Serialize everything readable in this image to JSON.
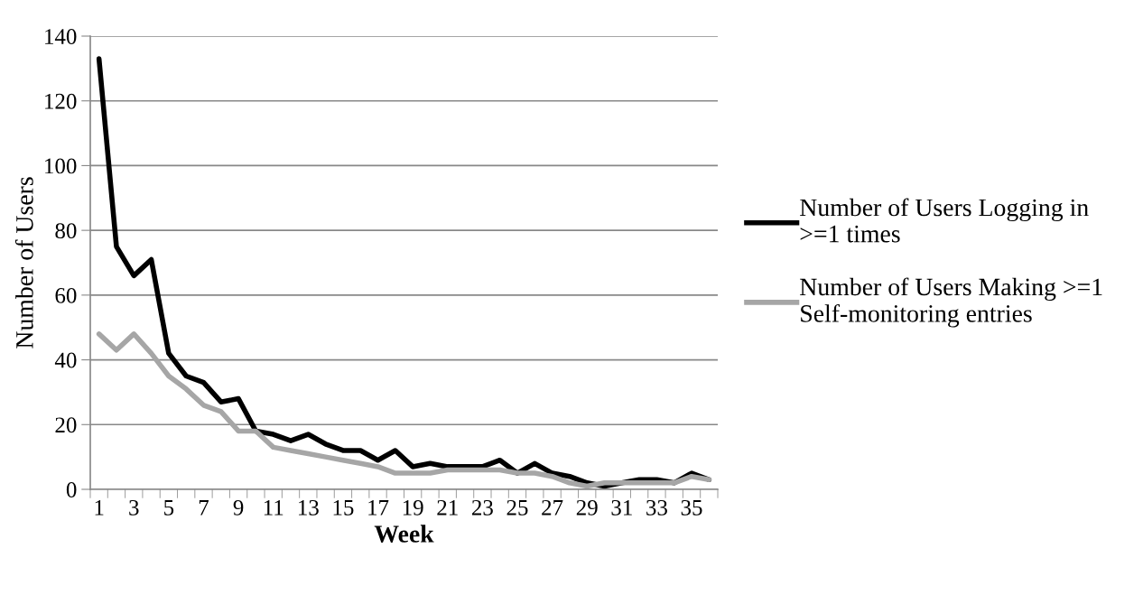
{
  "chart_data": {
    "type": "line",
    "xlabel": "Week",
    "ylabel": "Number of Users",
    "categories": [
      "1",
      null,
      "3",
      null,
      "5",
      null,
      "7",
      null,
      "9",
      null,
      "11",
      null,
      "13",
      null,
      "15",
      null,
      "17",
      null,
      "19",
      null,
      "21",
      null,
      "23",
      null,
      "25",
      null,
      "27",
      null,
      "29",
      null,
      "31",
      null,
      "33",
      null,
      "35",
      null
    ],
    "series": [
      {
        "name": "Number of Users Logging in >=1 times",
        "color": "#000000",
        "values": [
          133,
          75,
          66,
          71,
          42,
          35,
          33,
          27,
          28,
          18,
          17,
          15,
          17,
          14,
          12,
          12,
          9,
          12,
          7,
          8,
          7,
          7,
          7,
          9,
          5,
          8,
          5,
          4,
          2,
          1,
          2,
          3,
          3,
          2,
          5,
          3
        ]
      },
      {
        "name": "Number of Users Making >=1 Self-monitoring entries",
        "color": "#a6a6a6",
        "values": [
          48,
          43,
          48,
          42,
          35,
          31,
          26,
          24,
          18,
          18,
          13,
          12,
          11,
          10,
          9,
          8,
          7,
          5,
          5,
          5,
          6,
          6,
          6,
          6,
          5,
          5,
          4,
          2,
          1,
          2,
          2,
          2,
          2,
          2,
          4,
          3
        ]
      }
    ],
    "ylim": [
      0,
      140
    ],
    "yticks": [
      0,
      20,
      40,
      60,
      80,
      100,
      120,
      140
    ],
    "grid": "y",
    "legend": "right",
    "marker": "none",
    "line_style": "solid"
  }
}
